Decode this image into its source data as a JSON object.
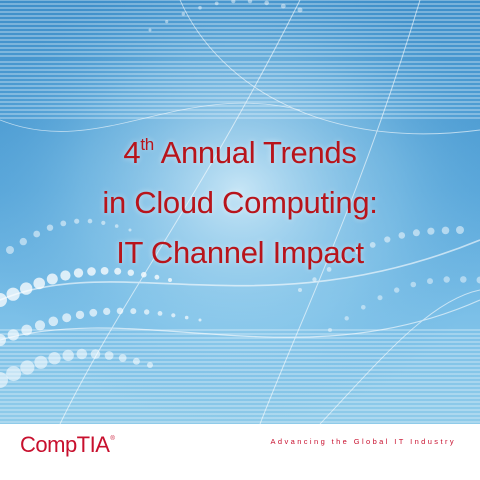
{
  "title": {
    "line1_number": "4",
    "line1_sup": "th",
    "line1_rest": "Annual Trends",
    "line2": "in Cloud Computing:",
    "line3": "IT Channel Impact"
  },
  "footer": {
    "logo_text": "CompTIA",
    "logo_mark": "®",
    "tagline": "Advancing the Global IT Industry"
  },
  "colors": {
    "title": "#b8141b",
    "brand": "#c8102e",
    "background_top": "#3f8fc9",
    "background_bottom": "#8fcbe9"
  }
}
